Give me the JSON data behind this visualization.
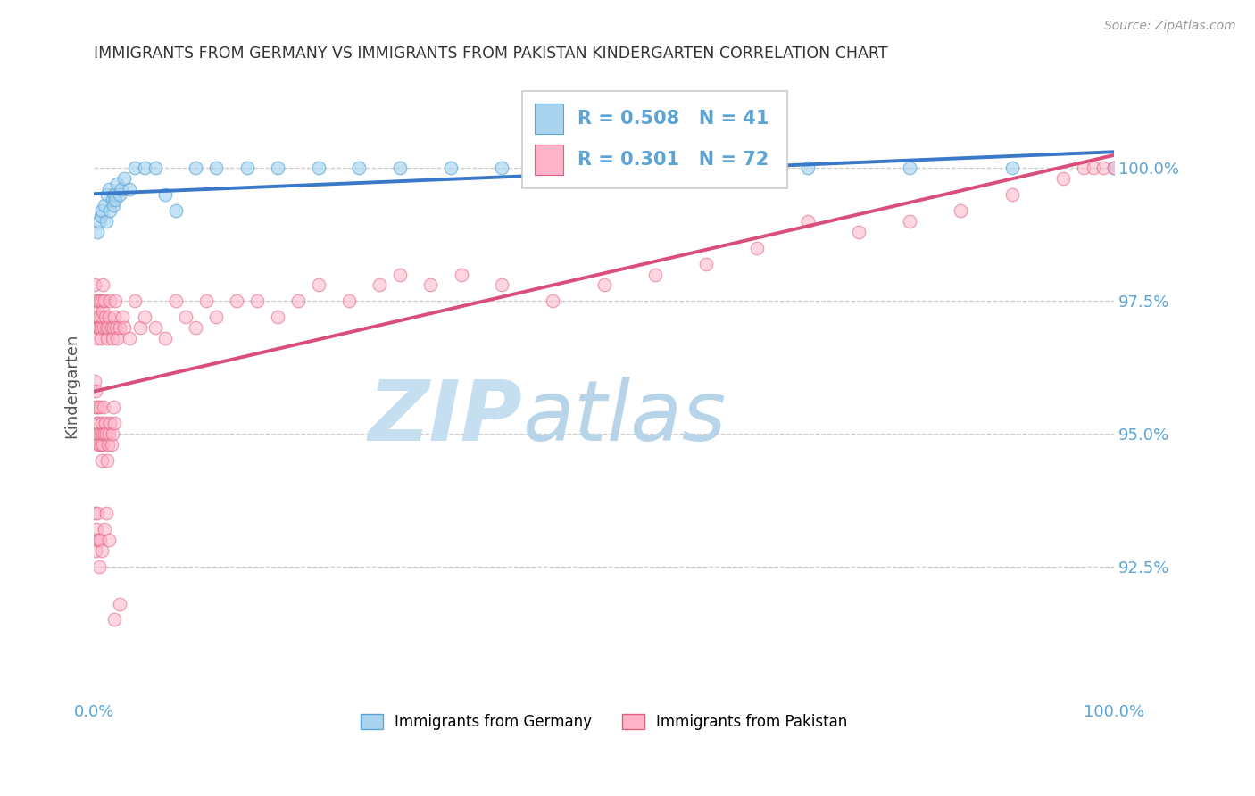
{
  "title": "IMMIGRANTS FROM GERMANY VS IMMIGRANTS FROM PAKISTAN KINDERGARTEN CORRELATION CHART",
  "source": "Source: ZipAtlas.com",
  "ylabel": "Kindergarten",
  "y_tick_labels": [
    "100.0%",
    "97.5%",
    "95.0%",
    "92.5%"
  ],
  "y_tick_values": [
    100.0,
    97.5,
    95.0,
    92.5
  ],
  "xlim": [
    0.0,
    100.0
  ],
  "ylim": [
    90.0,
    101.8
  ],
  "legend_label_blue": "Immigrants from Germany",
  "legend_label_pink": "Immigrants from Pakistan",
  "legend_r_blue": "R = 0.508",
  "legend_n_blue": "N = 41",
  "legend_r_pink": "R = 0.301",
  "legend_n_pink": "N = 72",
  "blue_scatter_x": [
    0.3,
    0.5,
    0.7,
    0.8,
    1.0,
    1.2,
    1.3,
    1.5,
    1.6,
    1.8,
    1.9,
    2.0,
    2.1,
    2.3,
    2.5,
    2.7,
    3.0,
    3.5,
    4.0,
    5.0,
    6.0,
    7.0,
    8.0,
    10.0,
    12.0,
    15.0,
    18.0,
    22.0,
    26.0,
    30.0,
    35.0,
    40.0,
    45.0,
    50.0,
    55.0,
    60.0,
    65.0,
    70.0,
    80.0,
    90.0,
    100.0
  ],
  "blue_scatter_y": [
    98.8,
    99.0,
    99.1,
    99.2,
    99.3,
    99.0,
    99.5,
    99.6,
    99.2,
    99.4,
    99.3,
    99.5,
    99.4,
    99.7,
    99.5,
    99.6,
    99.8,
    99.6,
    100.0,
    100.0,
    100.0,
    99.5,
    99.2,
    100.0,
    100.0,
    100.0,
    100.0,
    100.0,
    100.0,
    100.0,
    100.0,
    100.0,
    100.0,
    100.0,
    100.0,
    100.0,
    100.0,
    100.0,
    100.0,
    100.0,
    100.0
  ],
  "pink_scatter_x": [
    0.1,
    0.15,
    0.2,
    0.25,
    0.3,
    0.35,
    0.4,
    0.45,
    0.5,
    0.55,
    0.6,
    0.65,
    0.7,
    0.75,
    0.8,
    0.85,
    0.9,
    0.95,
    1.0,
    1.1,
    1.2,
    1.3,
    1.4,
    1.5,
    1.6,
    1.7,
    1.8,
    1.9,
    2.0,
    2.1,
    2.2,
    2.3,
    2.5,
    2.8,
    3.0,
    3.5,
    4.0,
    4.5,
    5.0,
    6.0,
    7.0,
    8.0,
    9.0,
    10.0,
    11.0,
    12.0,
    14.0,
    16.0,
    18.0,
    20.0,
    22.0,
    25.0,
    28.0,
    30.0,
    33.0,
    36.0,
    40.0,
    45.0,
    50.0,
    55.0,
    60.0,
    65.0,
    70.0,
    75.0,
    80.0,
    85.0,
    90.0,
    95.0,
    97.0,
    98.0,
    99.0,
    100.0
  ],
  "pink_scatter_y": [
    97.8,
    97.5,
    97.2,
    97.0,
    97.3,
    96.8,
    97.0,
    97.5,
    97.2,
    97.0,
    97.5,
    97.0,
    96.8,
    97.2,
    97.5,
    97.8,
    97.3,
    97.0,
    97.5,
    97.2,
    97.0,
    96.8,
    97.0,
    97.2,
    97.5,
    97.0,
    96.8,
    97.0,
    97.2,
    97.5,
    97.0,
    96.8,
    97.0,
    97.2,
    97.0,
    96.8,
    97.5,
    97.0,
    97.2,
    97.0,
    96.8,
    97.5,
    97.2,
    97.0,
    97.5,
    97.2,
    97.5,
    97.5,
    97.2,
    97.5,
    97.8,
    97.5,
    97.8,
    98.0,
    97.8,
    98.0,
    97.8,
    97.5,
    97.8,
    98.0,
    98.2,
    98.5,
    99.0,
    98.8,
    99.0,
    99.2,
    99.5,
    99.8,
    100.0,
    100.0,
    100.0,
    100.0
  ],
  "pink_scatter_x_low": [
    0.1,
    0.15,
    0.2,
    0.25,
    0.3,
    0.35,
    0.4,
    0.45,
    0.5,
    0.55,
    0.6,
    0.65,
    0.7,
    0.75,
    0.8,
    0.85,
    0.9,
    0.95,
    1.0,
    1.1,
    1.2,
    1.3,
    1.4,
    1.5,
    1.6,
    1.7,
    1.8,
    1.9,
    2.0
  ],
  "pink_scatter_y_low": [
    96.0,
    95.8,
    95.5,
    95.2,
    95.5,
    95.0,
    94.8,
    95.2,
    94.8,
    95.0,
    95.5,
    95.0,
    94.8,
    95.2,
    94.5,
    94.8,
    95.0,
    95.5,
    95.0,
    95.2,
    95.0,
    94.5,
    94.8,
    95.0,
    95.2,
    94.8,
    95.0,
    95.5,
    95.2
  ],
  "pink_scatter_x_vlow": [
    0.1,
    0.15,
    0.2,
    0.25,
    0.3,
    0.4,
    0.5,
    0.6,
    0.8,
    1.0,
    1.2,
    1.5,
    2.0,
    2.5
  ],
  "pink_scatter_y_vlow": [
    93.5,
    93.0,
    92.8,
    93.2,
    93.5,
    93.0,
    92.5,
    93.0,
    92.8,
    93.2,
    93.5,
    93.0,
    91.5,
    91.8
  ],
  "blue_color": "#a8d4f0",
  "blue_edge_color": "#5ba4d4",
  "pink_color": "#ffb3c8",
  "pink_edge_color": "#e06080",
  "blue_line_color": "#3a78c9",
  "pink_line_color": "#d94f7a",
  "grid_color": "#cccccc",
  "title_color": "#333333",
  "axis_label_color": "#555555",
  "tick_label_color": "#5ba4d4",
  "background_color": "#ffffff",
  "watermark_zip_color": "#c5dff0",
  "watermark_atlas_color": "#b8d4e8"
}
